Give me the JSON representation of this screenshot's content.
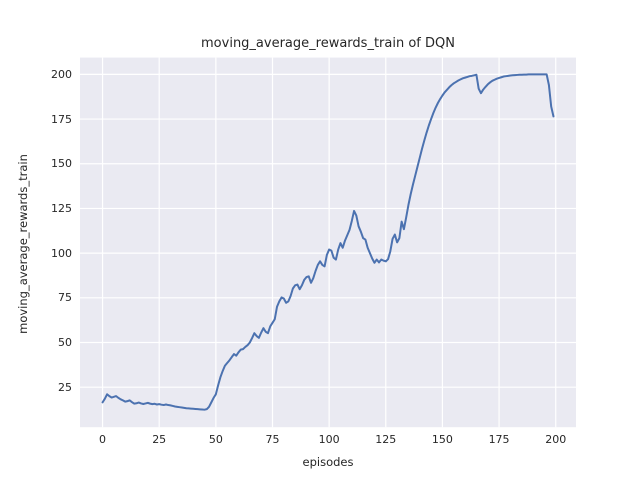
{
  "chart_data": {
    "type": "line",
    "title": "moving_average_rewards_train of DQN",
    "xlabel": "episodes",
    "ylabel": "moving_average_rewards_train",
    "x_ticks": [
      0,
      25,
      50,
      75,
      100,
      125,
      150,
      175,
      200
    ],
    "y_ticks": [
      25,
      50,
      75,
      100,
      125,
      150,
      175,
      200
    ],
    "xlim": [
      -9.95,
      208.95
    ],
    "ylim": [
      2.6,
      209.4
    ],
    "grid": true,
    "legend_position": "none",
    "style": "seaborn-darkgrid",
    "colors": {
      "line": "#4c72b0",
      "axes_background": "#eaeaf2",
      "gridline": "#ffffff",
      "figure_background": "#ffffff",
      "text": "#262626"
    },
    "series": [
      {
        "name": "moving_average_rewards_train",
        "x_start": 0,
        "x_step": 1,
        "y": [
          16.5,
          18.5,
          21,
          20,
          19.2,
          19.6,
          20,
          19,
          18.2,
          17.6,
          16.9,
          17.2,
          17.6,
          16.6,
          15.8,
          16,
          16.4,
          15.9,
          15.6,
          15.9,
          16.2,
          15.8,
          15.5,
          15.7,
          15.3,
          15.5,
          15.2,
          15,
          15.3,
          15,
          14.8,
          14.5,
          14.2,
          14,
          13.8,
          13.6,
          13.4,
          13.2,
          13.1,
          13,
          12.9,
          12.8,
          12.7,
          12.6,
          12.5,
          12.4,
          12.7,
          14,
          16.5,
          19,
          21,
          26,
          30.5,
          34,
          37,
          38.5,
          40,
          41.8,
          43.5,
          42.6,
          44.5,
          46,
          46.3,
          47.5,
          48.5,
          50,
          52.5,
          55.2,
          53.6,
          52.6,
          55.5,
          58,
          56,
          55.2,
          59,
          61,
          63,
          70,
          73,
          75.2,
          74.6,
          72.2,
          73,
          76,
          80.2,
          82,
          82.4,
          79.8,
          82,
          85,
          86.6,
          87,
          83.4,
          86,
          90,
          93.4,
          95.4,
          93.4,
          92.6,
          99,
          102,
          101.4,
          97.4,
          96.4,
          102,
          105.6,
          103,
          107,
          110,
          113,
          118,
          123.6,
          121,
          115,
          112,
          108.4,
          107.6,
          103,
          100,
          97,
          94.6,
          96.4,
          94.8,
          96.4,
          95.8,
          95.4,
          96.6,
          101,
          108,
          110.4,
          106,
          108.4,
          117.6,
          113.4,
          120,
          127,
          133,
          138.4,
          143.4,
          148.4,
          153.4,
          158.4,
          163,
          167.4,
          171.4,
          175,
          178.4,
          181.4,
          184,
          186.2,
          188.2,
          190,
          191.4,
          192.8,
          194,
          195,
          195.8,
          196.6,
          197.2,
          197.8,
          198.2,
          198.6,
          199,
          199.2,
          199.5,
          199.8,
          192,
          189.5,
          191.5,
          193,
          194.4,
          195.5,
          196.4,
          197,
          197.6,
          198,
          198.4,
          198.8,
          199,
          199.2,
          199.4,
          199.5,
          199.6,
          199.7,
          199.8,
          199.8,
          199.9,
          199.9,
          200,
          200,
          200,
          200,
          200,
          200,
          200,
          200,
          200,
          194,
          182,
          176.5
        ]
      }
    ]
  }
}
